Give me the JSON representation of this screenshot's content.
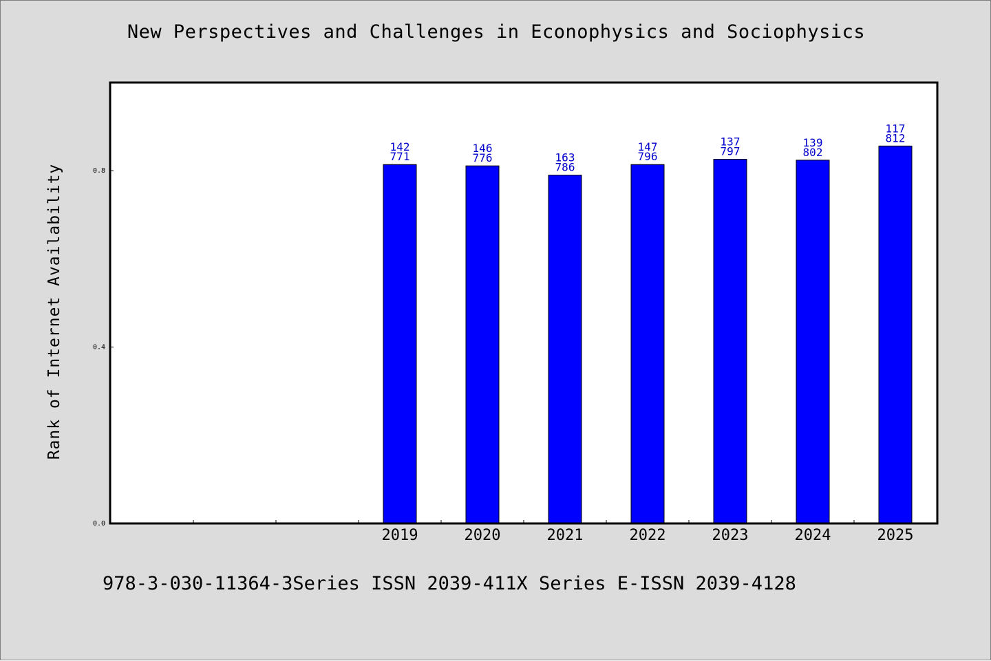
{
  "title": "New Perspectives and Challenges in Econophysics and Sociophysics",
  "footer": "978-3-030-11364-3Series ISSN 2039-411X Series E-ISSN 2039-4128",
  "colors": {
    "bar": "#0000ff",
    "label": "#0000cc",
    "background": "#dcdcdc",
    "plot": "#ffffff"
  },
  "chart_data": {
    "type": "bar",
    "title": "New Perspectives and Challenges in Econophysics and Sociophysics",
    "xlabel": "",
    "ylabel": "Rank of Internet Availability",
    "ylim": [
      0,
      1
    ],
    "yticks": [
      {
        "value": 0,
        "label": "0.0"
      },
      {
        "value": 0.4,
        "label": "0.4"
      },
      {
        "value": 0.8,
        "label": "0.8"
      }
    ],
    "categories": [
      "2019",
      "2020",
      "2021",
      "2022",
      "2023",
      "2024",
      "2025"
    ],
    "values": [
      0.814,
      0.811,
      0.79,
      0.814,
      0.826,
      0.824,
      0.856
    ],
    "bar_labels_top": [
      "142",
      "146",
      "163",
      "147",
      "137",
      "139",
      "117"
    ],
    "bar_labels_bottom": [
      "771",
      "776",
      "786",
      "796",
      "797",
      "802",
      "812"
    ],
    "grid": false,
    "legend": "none"
  }
}
